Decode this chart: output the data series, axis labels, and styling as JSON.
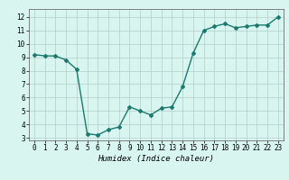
{
  "x": [
    0,
    1,
    2,
    3,
    4,
    5,
    6,
    7,
    8,
    9,
    10,
    11,
    12,
    13,
    14,
    15,
    16,
    17,
    18,
    19,
    20,
    21,
    22,
    23
  ],
  "y": [
    9.2,
    9.1,
    9.1,
    8.8,
    8.1,
    3.3,
    3.2,
    3.6,
    3.8,
    5.3,
    5.0,
    4.7,
    5.2,
    5.3,
    6.8,
    9.3,
    11.0,
    11.3,
    11.5,
    11.2,
    11.3,
    11.4,
    11.4,
    12.0
  ],
  "xlabel": "Humidex (Indice chaleur)",
  "xlim": [
    -0.5,
    23.5
  ],
  "ylim": [
    2.8,
    12.6
  ],
  "yticks": [
    3,
    4,
    5,
    6,
    7,
    8,
    9,
    10,
    11,
    12
  ],
  "xticks": [
    0,
    1,
    2,
    3,
    4,
    5,
    6,
    7,
    8,
    9,
    10,
    11,
    12,
    13,
    14,
    15,
    16,
    17,
    18,
    19,
    20,
    21,
    22,
    23
  ],
  "line_color": "#1a7a6e",
  "marker": "D",
  "marker_size": 2.0,
  "bg_color": "#d8f5f0",
  "grid_color": "#b0cece",
  "line_width": 1.0,
  "tick_fontsize": 5.5,
  "xlabel_fontsize": 6.5
}
